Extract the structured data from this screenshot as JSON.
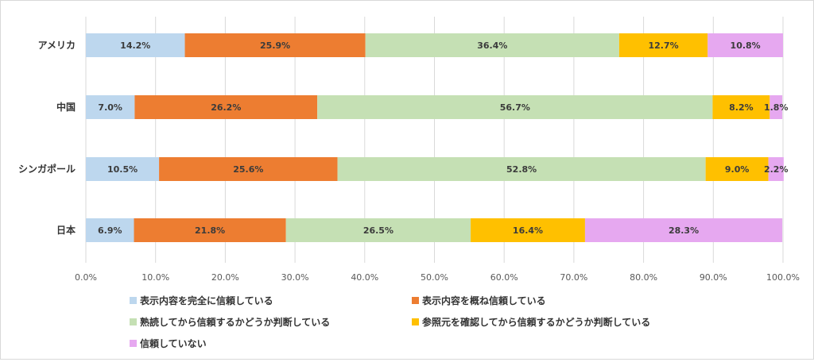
{
  "chart_data": {
    "type": "bar",
    "orientation": "horizontal",
    "stacked": "percent",
    "categories": [
      "アメリカ",
      "中国",
      "シンガポール",
      "日本"
    ],
    "series": [
      {
        "name": "表示内容を完全に信頼している",
        "color": "#bdd7ee",
        "values": [
          14.2,
          7.0,
          10.5,
          6.9
        ],
        "labels": [
          "14.2%",
          "7.0%",
          "10.5%",
          "6.9%"
        ]
      },
      {
        "name": "表示内容を概ね信頼している",
        "color": "#ed7d31",
        "values": [
          25.9,
          26.2,
          25.6,
          21.8
        ],
        "labels": [
          "25.9%",
          "26.2%",
          "25.6%",
          "21.8%"
        ]
      },
      {
        "name": "熟読してから信頼するかどうか判断している",
        "color": "#c5e0b4",
        "values": [
          36.4,
          56.7,
          52.8,
          26.5
        ],
        "labels": [
          "36.4%",
          "56.7%",
          "52.8%",
          "26.5%"
        ]
      },
      {
        "name": "参照元を確認してから信頼するかどうか判断している",
        "color": "#ffc000",
        "values": [
          12.7,
          8.2,
          9.0,
          16.4
        ],
        "labels": [
          "12.7%",
          "8.2%",
          "9.0%",
          "16.4%"
        ]
      },
      {
        "name": "信頼していない",
        "color": "#e6a8f0",
        "values": [
          10.8,
          1.8,
          2.2,
          28.3
        ],
        "labels": [
          "10.8%",
          "1.8%",
          "2.2%",
          "28.3%"
        ]
      }
    ],
    "xlim": [
      0,
      100
    ],
    "x_ticks": [
      "0.0%",
      "10.0%",
      "20.0%",
      "30.0%",
      "40.0%",
      "50.0%",
      "60.0%",
      "70.0%",
      "80.0%",
      "90.0%",
      "100.0%"
    ],
    "grid": "vertical",
    "legend_position": "bottom",
    "title": "",
    "xlabel": "",
    "ylabel": ""
  }
}
